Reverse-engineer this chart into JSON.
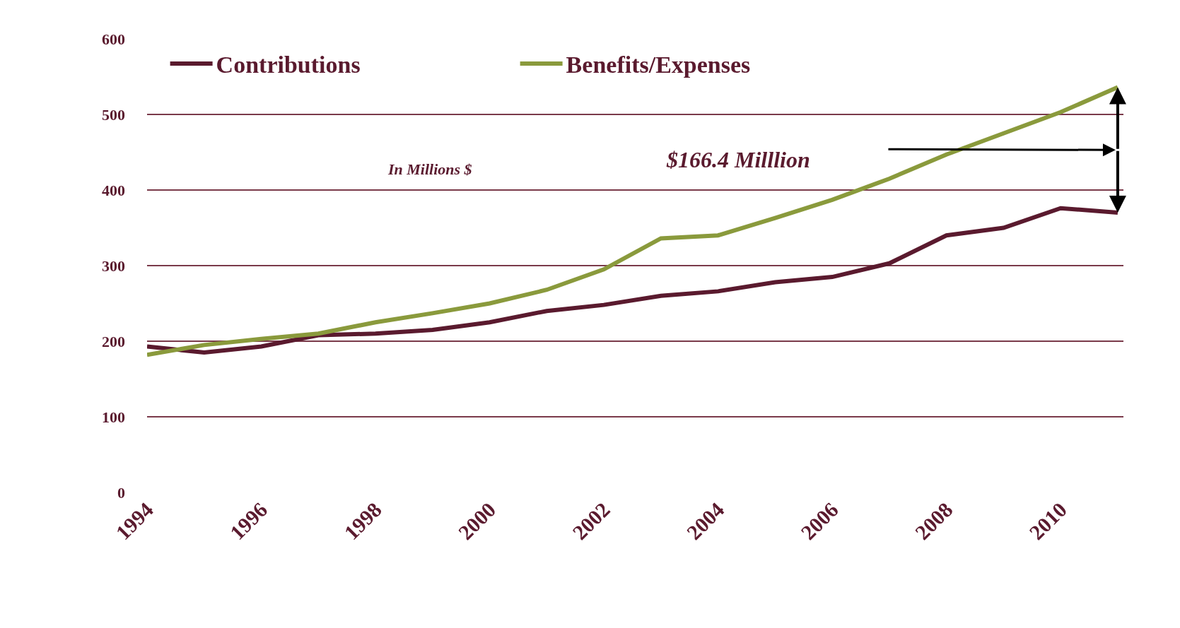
{
  "chart_data": {
    "type": "line",
    "x": [
      1994,
      1995,
      1996,
      1997,
      1998,
      1999,
      2000,
      2001,
      2002,
      2003,
      2004,
      2005,
      2006,
      2007,
      2008,
      2009,
      2010,
      2011
    ],
    "series": [
      {
        "name": "Contributions",
        "color": "#5a1a2e",
        "values": [
          193,
          185,
          193,
          208,
          210,
          215,
          225,
          240,
          248,
          260,
          266,
          278,
          285,
          303,
          340,
          350,
          376,
          370
        ]
      },
      {
        "name": "Benefits/Expenses",
        "color": "#8a9a3c",
        "values": [
          182,
          195,
          203,
          210,
          225,
          237,
          250,
          268,
          295,
          336,
          340,
          363,
          387,
          415,
          447,
          475,
          503,
          536
        ]
      }
    ],
    "xlim": [
      1994,
      2011.1
    ],
    "xticks": [
      1994,
      1996,
      1998,
      2000,
      2002,
      2004,
      2006,
      2008,
      2010
    ],
    "ylim": [
      0,
      600
    ],
    "yticks": [
      0,
      100,
      200,
      300,
      400,
      500,
      600
    ],
    "grid": "y",
    "legend": "top left",
    "marker": "none",
    "line_style": "solid",
    "annotations": [
      "In Millions $",
      "$166.4 Milllion"
    ]
  }
}
